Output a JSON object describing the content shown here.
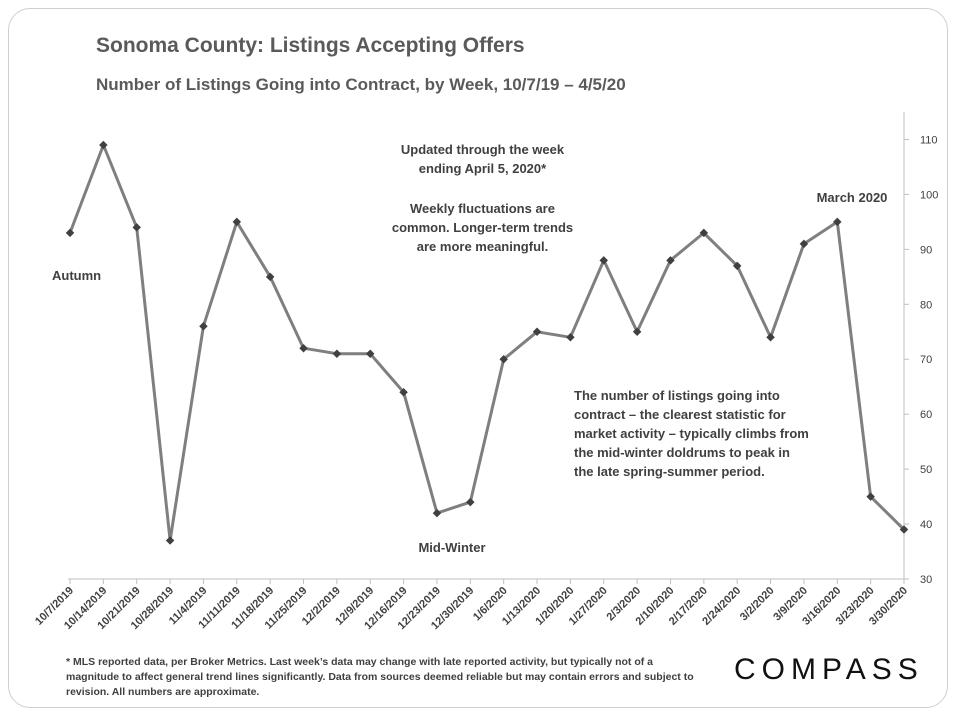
{
  "title": "Sonoma County: Listings Accepting Offers",
  "subtitle": "Number of Listings Going into Contract, by Week, 10/7/19 – 4/5/20",
  "notes": {
    "updated": [
      "Updated through the week",
      "ending April 5, 2020*"
    ],
    "fluctuations": [
      "Weekly fluctuations are",
      "common. Longer-term trends",
      "are more meaningful."
    ],
    "market": [
      "The number of listings going into",
      "contract – the clearest statistic for",
      "market activity – typically climbs from",
      "the mid-winter doldrums to peak in",
      "the late spring-summer period."
    ]
  },
  "footnote": "* MLS reported data, per Broker Metrics. Last week’s data may change with late reported activity, but typically not of a magnitude to affect general trend lines significantly. Data from sources deemed reliable but may contain errors and subject to revision. All numbers are approximate.",
  "brand": "COMPASS",
  "colors": {
    "line": "#7f7f7f",
    "marker": "#404040",
    "text": "#404040",
    "title": "#5a5a5a"
  },
  "chart_data": {
    "type": "line",
    "title": "Sonoma County: Listings Accepting Offers",
    "subtitle": "Number of Listings Going into Contract, by Week, 10/7/19 – 4/5/20",
    "categories": [
      "10/7/2019",
      "10/14/2019",
      "10/21/2019",
      "10/28/2019",
      "11/4/2019",
      "11/11/2019",
      "11/18/2019",
      "11/25/2019",
      "12/2/2019",
      "12/9/2019",
      "12/16/2019",
      "12/23/2019",
      "12/30/2019",
      "1/6/2020",
      "1/13/2020",
      "1/20/2020",
      "1/27/2020",
      "2/3/2020",
      "2/10/2020",
      "2/17/2020",
      "2/24/2020",
      "3/2/2020",
      "3/9/2020",
      "3/16/2020",
      "3/23/2020",
      "3/30/2020"
    ],
    "series": [
      {
        "values": [
          93,
          109,
          94,
          37,
          76,
          95,
          85,
          72,
          71,
          71,
          64,
          42,
          44,
          70,
          75,
          74,
          88,
          75,
          88,
          93,
          87,
          74,
          91,
          95,
          45,
          39
        ]
      }
    ],
    "ylim": [
      30,
      115
    ],
    "yticks": [
      30,
      40,
      50,
      60,
      70,
      80,
      90,
      100,
      110
    ],
    "y_axis_side": "right",
    "grid": false,
    "annotations": [
      "Autumn",
      "Mid-Winter",
      "March 2020"
    ]
  }
}
